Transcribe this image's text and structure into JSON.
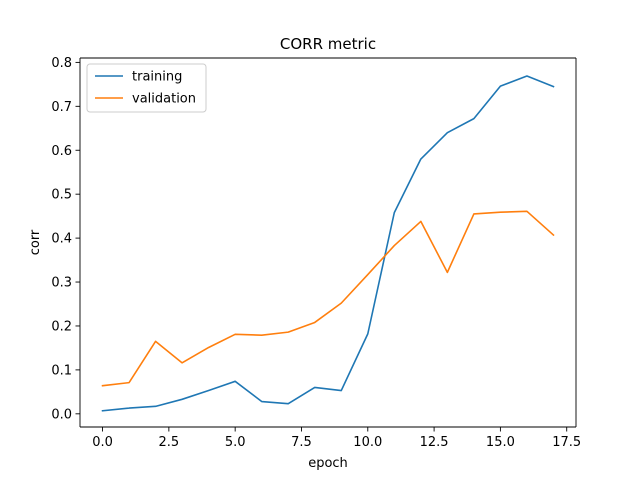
{
  "chart_data": {
    "type": "line",
    "title": "CORR metric",
    "xlabel": "epoch",
    "ylabel": "corr",
    "xlim": [
      -0.85,
      17.85
    ],
    "ylim": [
      -0.03,
      0.81
    ],
    "xticks": [
      0.0,
      2.5,
      5.0,
      7.5,
      10.0,
      12.5,
      15.0,
      17.5
    ],
    "xtick_labels": [
      "0.0",
      "2.5",
      "5.0",
      "7.5",
      "10.0",
      "12.5",
      "15.0",
      "17.5"
    ],
    "yticks": [
      0.0,
      0.1,
      0.2,
      0.3,
      0.4,
      0.5,
      0.6,
      0.7,
      0.8
    ],
    "ytick_labels": [
      "0.0",
      "0.1",
      "0.2",
      "0.3",
      "0.4",
      "0.5",
      "0.6",
      "0.7",
      "0.8"
    ],
    "grid": false,
    "legend_position": "upper-left",
    "x": [
      0,
      1,
      2,
      3,
      4,
      5,
      6,
      7,
      8,
      9,
      10,
      11,
      12,
      13,
      14,
      15,
      16,
      17
    ],
    "series": [
      {
        "name": "training",
        "color": "#1f77b4",
        "values": [
          0.007,
          0.013,
          0.017,
          0.033,
          0.053,
          0.074,
          0.028,
          0.023,
          0.06,
          0.053,
          0.182,
          0.458,
          0.58,
          0.64,
          0.672,
          0.746,
          0.769,
          0.745
        ]
      },
      {
        "name": "validation",
        "color": "#ff7f0e",
        "values": [
          0.064,
          0.071,
          0.165,
          0.116,
          0.151,
          0.181,
          0.179,
          0.186,
          0.208,
          0.252,
          0.317,
          0.383,
          0.438,
          0.322,
          0.455,
          0.459,
          0.461,
          0.407
        ]
      }
    ]
  }
}
